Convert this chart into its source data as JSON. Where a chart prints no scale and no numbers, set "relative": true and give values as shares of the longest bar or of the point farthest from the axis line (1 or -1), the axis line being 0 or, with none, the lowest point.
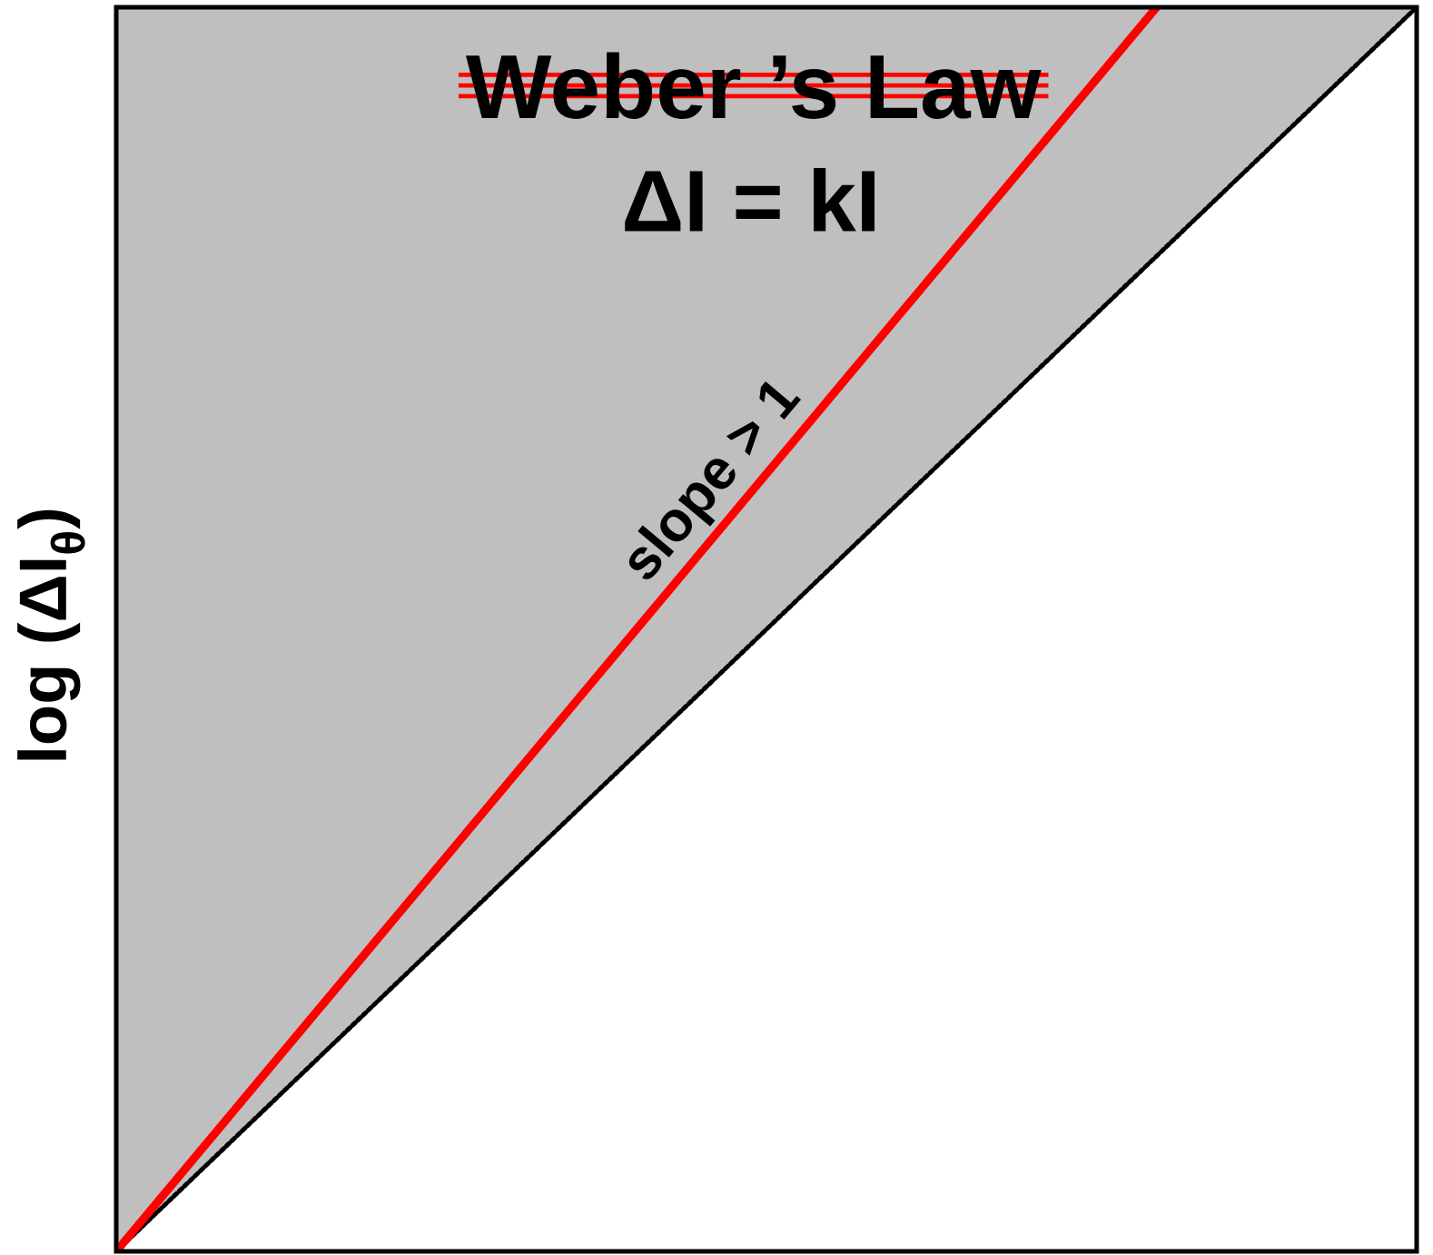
{
  "chart_data": {
    "type": "line",
    "relative": true,
    "title": "Weber ’s Law",
    "subtitle": "ΔI = kI",
    "ylabel": "log (ΔI$_{θ}$)",
    "annotations": [
      "slope > 1"
    ],
    "categories": [
      null,
      null,
      null,
      null,
      null,
      null
    ],
    "series": [
      {
        "color": "#000000",
        "line_style": "dotted",
        "values": [
          0,
          0.2,
          0.4,
          0.6,
          0.8,
          1
        ],
        "lower": [
          0,
          0.2,
          0.4,
          0.6,
          0.8,
          1
        ],
        "upper": [
          1,
          1,
          1,
          1,
          1,
          1
        ]
      },
      {
        "color": "#ff0000",
        "line_style": "solid",
        "values": [
          0,
          0.25,
          0.5,
          0.75,
          1,
          null
        ]
      }
    ]
  }
}
